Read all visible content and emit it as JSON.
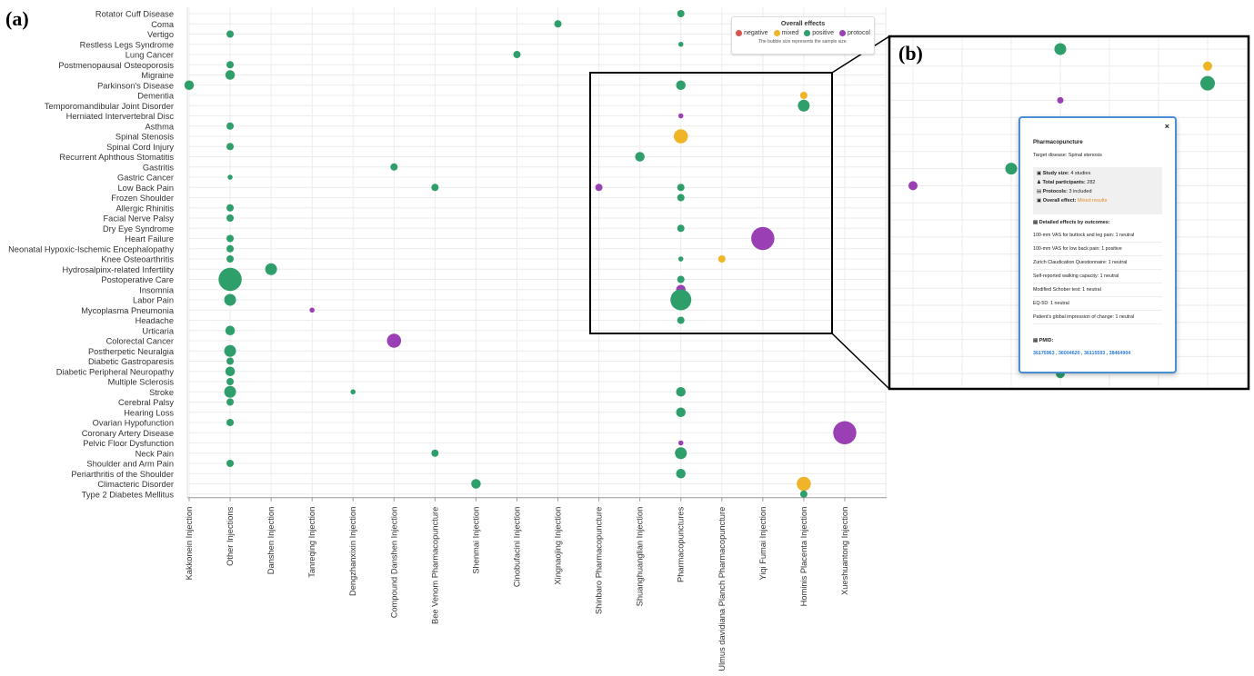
{
  "panel_a_label": "(a)",
  "panel_b_label": "(b)",
  "legend": {
    "title": "Overall effects",
    "items": [
      {
        "label": "negative",
        "color": "#d9534f"
      },
      {
        "label": "mixed",
        "color": "#f0b429"
      },
      {
        "label": "positive",
        "color": "#2e9e6a"
      },
      {
        "label": "protocol",
        "color": "#9b3fb5"
      }
    ],
    "note": "The bubble size represents the sample size."
  },
  "colors": {
    "positive": "#2e9e6a",
    "mixed": "#f0b429",
    "protocol": "#9b3fb5",
    "negative": "#d9534f"
  },
  "tooltip": {
    "close": "×",
    "title": "Pharmacopuncture",
    "target": "Target disease: Spinal stenosis",
    "study_size_label": "Study size:",
    "study_size_value": "4 studies",
    "participants_label": "Total participants:",
    "participants_value": "282",
    "protocols_label": "Protocols:",
    "protocols_value": "3 included",
    "effect_label": "Overall effect:",
    "effect_value": "Mixed results",
    "detailed_header": "Detailed effects by outcomes:",
    "outcomes": [
      "100-mm VAS for buttock and leg pain: 1 neutral",
      "100-mm VAS for low back pain: 1 positive",
      "Zurich Claudication Questionnaire: 1 neutral",
      "Self-reported walking capacity: 1 neutral",
      "Modified Schober test: 1 neutral",
      "EQ-5D: 1 neutral",
      "Patient's global impression of change: 1 neutral"
    ],
    "pmid_label": "PMID:",
    "pmids": "36175963 , 36004620 , 36115593 , 38464904"
  },
  "chart_data": {
    "type": "scatter",
    "title": "",
    "xlabel": "",
    "ylabel": "",
    "categories_x": [
      "Kakkonein Injection",
      "Other Injections",
      "Danshen Injection",
      "Tanreqing Injection",
      "Dengzhanxixin Injection",
      "Compound Danshen Injection",
      "Bee Venom Pharmacopuncture",
      "Shenmai Injection",
      "Cinobufacini Injection",
      "Xingnaojing Injection",
      "Shinbaro Pharmacopuncture",
      "Shuanghuanglian Injection",
      "Pharmacopunctures",
      "Ulmus davidiana Planch Pharmacopuncture",
      "Yiqi Fumai Injection",
      "Hominis Placenta Injection",
      "Xueshuantong Injection"
    ],
    "categories_y": [
      "Rotator Cuff Disease",
      "Coma",
      "Vertigo",
      "Restless Legs Syndrome",
      "Lung Cancer",
      "Postmenopausal Osteoporosis",
      "Migraine",
      "Parkinson's Disease",
      "Dementia",
      "Temporomandibular Joint Disorder",
      "Herniated Intervertebral Disc",
      "Asthma",
      "Spinal Stenosis",
      "Spinal Cord Injury",
      "Recurrent Aphthous Stomatitis",
      "Gastritis",
      "Gastric Cancer",
      "Low Back Pain",
      "Frozen Shoulder",
      "Allergic Rhinitis",
      "Facial Nerve Palsy",
      "Dry Eye Syndrome",
      "Heart Failure",
      "Neonatal Hypoxic-Ischemic Encephalopathy",
      "Knee Osteoarthritis",
      "Hydrosalpinx-related Infertility",
      "Postoperative Care",
      "Insomnia",
      "Labor Pain",
      "Mycoplasma Pneumonia",
      "Headache",
      "Urticaria",
      "Colorectal Cancer",
      "Postherpetic Neuralgia",
      "Diabetic Gastroparesis",
      "Diabetic Peripheral Neuropathy",
      "Multiple Sclerosis",
      "Stroke",
      "Cerebral Palsy",
      "Hearing Loss",
      "Ovarian Hypofunction",
      "Coronary Artery Disease",
      "Pelvic Floor Dysfunction",
      "Neck Pain",
      "Shoulder and Arm Pain",
      "Periarthritis of the Shoulder",
      "Climacteric Disorder",
      "Type 2 Diabetes Mellitus"
    ],
    "points": [
      {
        "x": "Pharmacopunctures",
        "y": "Rotator Cuff Disease",
        "size": 2,
        "effect": "positive"
      },
      {
        "x": "Xingnaojing Injection",
        "y": "Coma",
        "size": 2,
        "effect": "positive"
      },
      {
        "x": "Other Injections",
        "y": "Vertigo",
        "size": 2,
        "effect": "positive"
      },
      {
        "x": "Pharmacopunctures",
        "y": "Restless Legs Syndrome",
        "size": 1,
        "effect": "positive"
      },
      {
        "x": "Cinobufacini Injection",
        "y": "Lung Cancer",
        "size": 2,
        "effect": "positive"
      },
      {
        "x": "Other Injections",
        "y": "Postmenopausal Osteoporosis",
        "size": 2,
        "effect": "positive"
      },
      {
        "x": "Other Injections",
        "y": "Migraine",
        "size": 3,
        "effect": "positive"
      },
      {
        "x": "Kakkonein Injection",
        "y": "Parkinson's Disease",
        "size": 3,
        "effect": "positive"
      },
      {
        "x": "Pharmacopunctures",
        "y": "Parkinson's Disease",
        "size": 3,
        "effect": "positive"
      },
      {
        "x": "Hominis Placenta Injection",
        "y": "Dementia",
        "size": 2,
        "effect": "mixed"
      },
      {
        "x": "Hominis Placenta Injection",
        "y": "Temporomandibular Joint Disorder",
        "size": 4,
        "effect": "positive"
      },
      {
        "x": "Pharmacopunctures",
        "y": "Herniated Intervertebral Disc",
        "size": 1,
        "effect": "protocol"
      },
      {
        "x": "Other Injections",
        "y": "Asthma",
        "size": 2,
        "effect": "positive"
      },
      {
        "x": "Pharmacopunctures",
        "y": "Spinal Stenosis",
        "size": 5,
        "effect": "mixed"
      },
      {
        "x": "Other Injections",
        "y": "Spinal Cord Injury",
        "size": 2,
        "effect": "positive"
      },
      {
        "x": "Shuanghuanglian Injection",
        "y": "Recurrent Aphthous Stomatitis",
        "size": 3,
        "effect": "positive"
      },
      {
        "x": "Compound Danshen Injection",
        "y": "Gastritis",
        "size": 2,
        "effect": "positive"
      },
      {
        "x": "Other Injections",
        "y": "Gastric Cancer",
        "size": 1,
        "effect": "positive"
      },
      {
        "x": "Bee Venom Pharmacopuncture",
        "y": "Low Back Pain",
        "size": 2,
        "effect": "positive"
      },
      {
        "x": "Shinbaro Pharmacopuncture",
        "y": "Low Back Pain",
        "size": 2,
        "effect": "protocol"
      },
      {
        "x": "Pharmacopunctures",
        "y": "Low Back Pain",
        "size": 2,
        "effect": "positive"
      },
      {
        "x": "Pharmacopunctures",
        "y": "Frozen Shoulder",
        "size": 2,
        "effect": "positive"
      },
      {
        "x": "Other Injections",
        "y": "Allergic Rhinitis",
        "size": 2,
        "effect": "positive"
      },
      {
        "x": "Other Injections",
        "y": "Facial Nerve Palsy",
        "size": 2,
        "effect": "positive"
      },
      {
        "x": "Pharmacopunctures",
        "y": "Dry Eye Syndrome",
        "size": 2,
        "effect": "positive"
      },
      {
        "x": "Yiqi Fumai Injection",
        "y": "Heart Failure",
        "size": 9,
        "effect": "protocol"
      },
      {
        "x": "Other Injections",
        "y": "Heart Failure",
        "size": 2,
        "effect": "positive"
      },
      {
        "x": "Other Injections",
        "y": "Neonatal Hypoxic-Ischemic Encephalopathy",
        "size": 2,
        "effect": "positive"
      },
      {
        "x": "Other Injections",
        "y": "Knee Osteoarthritis",
        "size": 2,
        "effect": "positive"
      },
      {
        "x": "Pharmacopunctures",
        "y": "Knee Osteoarthritis",
        "size": 1,
        "effect": "positive"
      },
      {
        "x": "Ulmus davidiana Planch Pharmacopuncture",
        "y": "Knee Osteoarthritis",
        "size": 2,
        "effect": "mixed"
      },
      {
        "x": "Danshen Injection",
        "y": "Hydrosalpinx-related Infertility",
        "size": 4,
        "effect": "positive"
      },
      {
        "x": "Other Injections",
        "y": "Postoperative Care",
        "size": 9,
        "effect": "positive"
      },
      {
        "x": "Pharmacopunctures",
        "y": "Postoperative Care",
        "size": 2,
        "effect": "positive"
      },
      {
        "x": "Pharmacopunctures",
        "y": "Insomnia",
        "size": 3,
        "effect": "protocol"
      },
      {
        "x": "Other Injections",
        "y": "Labor Pain",
        "size": 4,
        "effect": "positive"
      },
      {
        "x": "Pharmacopunctures",
        "y": "Labor Pain",
        "size": 8,
        "effect": "positive"
      },
      {
        "x": "Tanreqing Injection",
        "y": "Mycoplasma Pneumonia",
        "size": 1,
        "effect": "protocol"
      },
      {
        "x": "Pharmacopunctures",
        "y": "Headache",
        "size": 2,
        "effect": "positive"
      },
      {
        "x": "Other Injections",
        "y": "Urticaria",
        "size": 3,
        "effect": "positive"
      },
      {
        "x": "Compound Danshen Injection",
        "y": "Colorectal Cancer",
        "size": 5,
        "effect": "protocol"
      },
      {
        "x": "Other Injections",
        "y": "Postherpetic Neuralgia",
        "size": 4,
        "effect": "positive"
      },
      {
        "x": "Other Injections",
        "y": "Diabetic Gastroparesis",
        "size": 2,
        "effect": "positive"
      },
      {
        "x": "Other Injections",
        "y": "Diabetic Peripheral Neuropathy",
        "size": 3,
        "effect": "positive"
      },
      {
        "x": "Other Injections",
        "y": "Multiple Sclerosis",
        "size": 2,
        "effect": "positive"
      },
      {
        "x": "Other Injections",
        "y": "Stroke",
        "size": 4,
        "effect": "positive"
      },
      {
        "x": "Dengzhanxixin Injection",
        "y": "Stroke",
        "size": 1,
        "effect": "positive"
      },
      {
        "x": "Pharmacopunctures",
        "y": "Stroke",
        "size": 3,
        "effect": "positive"
      },
      {
        "x": "Other Injections",
        "y": "Cerebral Palsy",
        "size": 2,
        "effect": "positive"
      },
      {
        "x": "Pharmacopunctures",
        "y": "Hearing Loss",
        "size": 3,
        "effect": "positive"
      },
      {
        "x": "Other Injections",
        "y": "Ovarian Hypofunction",
        "size": 2,
        "effect": "positive"
      },
      {
        "x": "Xueshuantong Injection",
        "y": "Coronary Artery Disease",
        "size": 9,
        "effect": "protocol"
      },
      {
        "x": "Pharmacopunctures",
        "y": "Pelvic Floor Dysfunction",
        "size": 1,
        "effect": "protocol"
      },
      {
        "x": "Bee Venom Pharmacopuncture",
        "y": "Neck Pain",
        "size": 2,
        "effect": "positive"
      },
      {
        "x": "Pharmacopunctures",
        "y": "Neck Pain",
        "size": 4,
        "effect": "positive"
      },
      {
        "x": "Other Injections",
        "y": "Shoulder and Arm Pain",
        "size": 2,
        "effect": "positive"
      },
      {
        "x": "Pharmacopunctures",
        "y": "Periarthritis of the Shoulder",
        "size": 3,
        "effect": "positive"
      },
      {
        "x": "Shenmai Injection",
        "y": "Climacteric Disorder",
        "size": 3,
        "effect": "positive"
      },
      {
        "x": "Hominis Placenta Injection",
        "y": "Climacteric Disorder",
        "size": 5,
        "effect": "mixed"
      },
      {
        "x": "Hominis Placenta Injection",
        "y": "Type 2 Diabetes Mellitus",
        "size": 2,
        "effect": "positive"
      }
    ],
    "legend_position": "top-right",
    "grid": true
  },
  "zoom_points": [
    {
      "col": 3,
      "row": 0,
      "size": 3,
      "effect": "positive"
    },
    {
      "col": 6,
      "row": 1,
      "size": 2,
      "effect": "mixed"
    },
    {
      "col": 6,
      "row": 2,
      "size": 4,
      "effect": "positive"
    },
    {
      "col": 3,
      "row": 3,
      "size": 1,
      "effect": "protocol"
    },
    {
      "col": 3,
      "row": 5,
      "size": 5,
      "effect": "mixed"
    },
    {
      "col": 2,
      "row": 7,
      "size": 3,
      "effect": "positive"
    },
    {
      "col": 0,
      "row": 8,
      "size": 2,
      "effect": "protocol"
    },
    {
      "col": 3,
      "row": 8,
      "size": 2,
      "effect": "positive"
    },
    {
      "col": 3,
      "row": 9,
      "size": 2,
      "effect": "positive"
    },
    {
      "col": 3,
      "row": 11,
      "size": 2,
      "effect": "positive"
    },
    {
      "col": 3,
      "row": 14,
      "size": 1,
      "effect": "positive"
    },
    {
      "col": 3,
      "row": 15,
      "size": 2,
      "effect": "positive"
    },
    {
      "col": 3,
      "row": 16,
      "size": 3,
      "effect": "protocol"
    },
    {
      "col": 3,
      "row": 17,
      "size": 8,
      "effect": "positive"
    },
    {
      "col": 3,
      "row": 19,
      "size": 2,
      "effect": "positive"
    }
  ]
}
